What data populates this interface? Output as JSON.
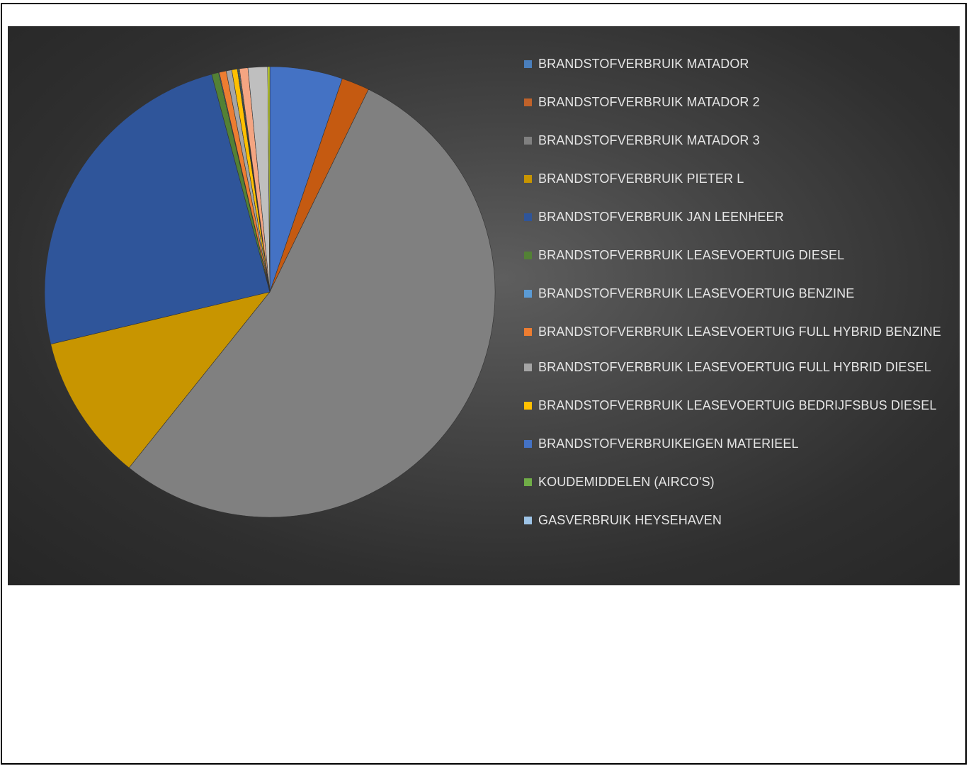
{
  "chart_data": {
    "type": "pie",
    "title": "",
    "legend_position": "right",
    "series": [
      {
        "name": "BRANDSTOFVERBRUIK MATADOR",
        "value": 5.2,
        "color": "#4472c4"
      },
      {
        "name": "BRANDSTOFVERBRUIK MATADOR 2",
        "value": 2.0,
        "color": "#c55a11"
      },
      {
        "name": "BRANDSTOFVERBRUIK MATADOR 3",
        "value": 53.4,
        "color": "#808080"
      },
      {
        "name": "BRANDSTOFVERBRUIK PIETER L",
        "value": 10.5,
        "color": "#c89500"
      },
      {
        "name": "BRANDSTOFVERBRUIK JAN LEENHEER",
        "value": 24.5,
        "color": "#2f559a"
      },
      {
        "name": "BRANDSTOFVERBRUIK LEASEVOERTUIG DIESEL",
        "value": 0.5,
        "color": "#538135"
      },
      {
        "name": "BRANDSTOFVERBRUIK LEASEVOERTUIG BENZINE",
        "value": 0.05,
        "color": "#5b9bd5"
      },
      {
        "name": "BRANDSTOFVERBRUIK LEASEVOERTUIG FULL HYBRID BENZINE",
        "value": 0.5,
        "color": "#ed7d31"
      },
      {
        "name": "BRANDSTOFVERBRUIK LEASEVOERTUIG FULL HYBRID DIESEL",
        "value": 0.4,
        "color": "#a5a5a5"
      },
      {
        "name": "BRANDSTOFVERBRUIK LEASEVOERTUIG BEDRIJFSBUS DIESEL",
        "value": 0.4,
        "color": "#ffc000"
      },
      {
        "name": "BRANDSTOFVERBRUIKEIGEN MATERIEEL",
        "value": 0.05,
        "color": "#4472c4"
      },
      {
        "name": "KOUDEMIDDELEN (AIRCO'S)",
        "value": 0.05,
        "color": "#70ad47"
      },
      {
        "name": "GASVERBRUIK HEYSEHAVEN",
        "value": 0.05,
        "color": "#9dc3e6"
      }
    ],
    "legend_only_colors": [
      "#4a7ebb",
      "#c0622a",
      "#808080",
      "#c89500",
      "#2f559a",
      "#538135",
      "#5b9bd5",
      "#ed7d31",
      "#a5a5a5",
      "#ffc000",
      "#4472c4",
      "#70ad47",
      "#9dc3e6"
    ],
    "extra_slices": [
      {
        "value": 0.6,
        "color": "#f4a582"
      },
      {
        "value": 1.4,
        "color": "#bfbfbf"
      },
      {
        "value": 0.15,
        "color": "#c6d62a"
      }
    ]
  }
}
